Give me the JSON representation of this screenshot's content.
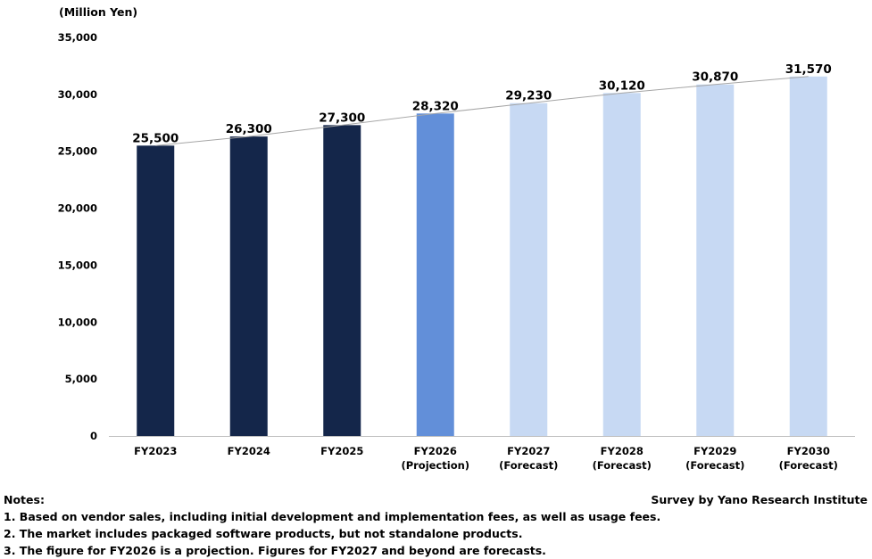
{
  "chart_data": {
    "type": "bar",
    "title": "",
    "ylabel": "(Million Yen)",
    "xlabel": "",
    "ylim": [
      0,
      35000
    ],
    "ytick_step": 5000,
    "grid": false,
    "legend": "none",
    "trend_line": true,
    "categories": [
      [
        "FY2023"
      ],
      [
        "FY2024"
      ],
      [
        "FY2025"
      ],
      [
        "FY2026",
        "(Projection)"
      ],
      [
        "FY2027",
        "(Forecast)"
      ],
      [
        "FY2028",
        "(Forecast)"
      ],
      [
        "FY2029",
        "(Forecast)"
      ],
      [
        "FY2030",
        "(Forecast)"
      ]
    ],
    "values": [
      25500,
      26300,
      27300,
      28320,
      29230,
      30120,
      30870,
      31570
    ],
    "value_labels": [
      "25,500",
      "26,300",
      "27,300",
      "28,320",
      "29,230",
      "30,120",
      "30,870",
      "31,570"
    ],
    "bar_colors": [
      "#14264a",
      "#14264a",
      "#14264a",
      "#628fd9",
      "#c7d9f3",
      "#c7d9f3",
      "#c7d9f3",
      "#c7d9f3"
    ],
    "trend_color": "#a6a6a6"
  },
  "notes": {
    "heading": "Notes:",
    "items": [
      "1. Based on vendor sales, including initial development and implementation fees, as well as usage fees.",
      "2. The market includes packaged software products, but not standalone products.",
      "3. The figure for FY2026 is a projection. Figures for FY2027 and beyond are forecasts."
    ]
  },
  "credit": "Survey by Yano Research Institute"
}
